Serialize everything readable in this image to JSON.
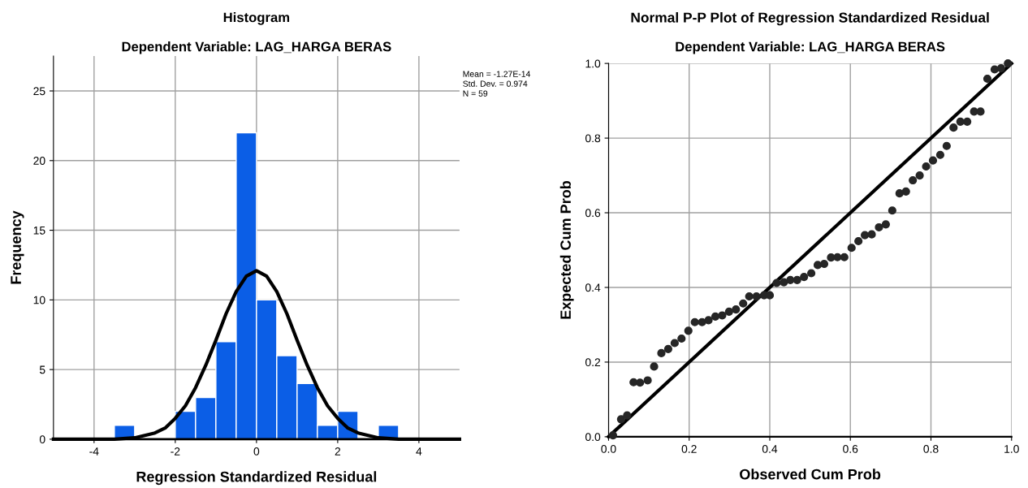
{
  "chart_data": [
    {
      "type": "histogram",
      "title": "Histogram",
      "subtitle": "Dependent Variable: LAG_HARGA BERAS",
      "xlabel": "Regression Standardized Residual",
      "ylabel": "Frequency",
      "series": [
        {
          "color": "#0b5ee6",
          "bins": [
            -3.5,
            -3.0,
            -2.5,
            -2.0,
            -1.5,
            -1.0,
            -0.5,
            0.0,
            0.5,
            1.0,
            1.5,
            2.0,
            2.5,
            3.0,
            3.5
          ],
          "values": [
            1,
            0,
            0,
            2,
            3,
            7,
            22,
            10,
            6,
            4,
            1,
            2,
            0,
            1
          ]
        },
        {
          "type": "line",
          "color": "#000000",
          "x": [
            -5,
            -4,
            -3.5,
            -3,
            -2.5,
            -2.25,
            -2,
            -1.75,
            -1.5,
            -1.25,
            -1,
            -0.75,
            -0.5,
            -0.25,
            0,
            0.25,
            0.5,
            0.75,
            1,
            1.25,
            1.5,
            1.75,
            2,
            2.25,
            2.5,
            3,
            3.5,
            4,
            5
          ],
          "values": [
            0,
            0,
            0,
            0.1,
            0.45,
            0.8,
            1.5,
            2.4,
            3.7,
            5.3,
            7.1,
            9.0,
            10.6,
            11.7,
            12.1,
            11.7,
            10.6,
            9.0,
            7.1,
            5.3,
            3.7,
            2.4,
            1.5,
            0.8,
            0.45,
            0.1,
            0,
            0,
            0
          ]
        }
      ],
      "xlim": [
        -5,
        5
      ],
      "ylim": [
        0,
        27.5
      ],
      "xticks": [
        -4,
        -2,
        0,
        2,
        4
      ],
      "yticks": [
        0,
        5,
        10,
        15,
        20,
        25
      ],
      "grid": true,
      "legend": false,
      "annotations": [
        "Mean = -1.27E-14",
        "Std. Dev. = 0.974",
        "N = 59"
      ]
    },
    {
      "type": "scatter",
      "title": "Normal P-P Plot of Regression Standardized Residual",
      "subtitle": "Dependent Variable: LAG_HARGA BERAS",
      "xlabel": "Observed Cum Prob",
      "ylabel": "Expected Cum Prob",
      "series": [
        {
          "color": "#262626",
          "marker": "circle",
          "x": [
            0.011,
            0.031,
            0.046,
            0.062,
            0.078,
            0.097,
            0.113,
            0.131,
            0.148,
            0.164,
            0.181,
            0.198,
            0.214,
            0.232,
            0.248,
            0.265,
            0.282,
            0.299,
            0.316,
            0.334,
            0.349,
            0.367,
            0.386,
            0.4,
            0.417,
            0.435,
            0.451,
            0.468,
            0.485,
            0.503,
            0.519,
            0.535,
            0.552,
            0.568,
            0.585,
            0.603,
            0.62,
            0.636,
            0.653,
            0.671,
            0.688,
            0.704,
            0.722,
            0.738,
            0.755,
            0.772,
            0.788,
            0.805,
            0.823,
            0.839,
            0.856,
            0.873,
            0.89,
            0.907,
            0.923,
            0.94,
            0.958,
            0.974,
            0.991
          ],
          "values": [
            0.004,
            0.047,
            0.057,
            0.146,
            0.145,
            0.151,
            0.188,
            0.224,
            0.235,
            0.251,
            0.263,
            0.284,
            0.307,
            0.307,
            0.312,
            0.322,
            0.325,
            0.335,
            0.341,
            0.357,
            0.376,
            0.376,
            0.379,
            0.379,
            0.412,
            0.414,
            0.42,
            0.42,
            0.428,
            0.438,
            0.46,
            0.463,
            0.48,
            0.481,
            0.481,
            0.506,
            0.524,
            0.54,
            0.542,
            0.561,
            0.569,
            0.606,
            0.652,
            0.657,
            0.687,
            0.7,
            0.724,
            0.74,
            0.755,
            0.779,
            0.828,
            0.844,
            0.844,
            0.871,
            0.871,
            0.959,
            0.984,
            0.987,
            1.0
          ]
        },
        {
          "type": "line",
          "color": "#000000",
          "x": [
            0,
            1
          ],
          "values": [
            0,
            1
          ]
        }
      ],
      "xlim": [
        0,
        1
      ],
      "ylim": [
        0,
        1
      ],
      "xticks": [
        {
          "value": 0,
          "label": "0.0"
        },
        {
          "value": 0.2,
          "label": "0.2"
        },
        {
          "value": 0.4,
          "label": "0.4"
        },
        {
          "value": 0.6,
          "label": "0.6"
        },
        {
          "value": 0.8,
          "label": "0.8"
        },
        {
          "value": 1,
          "label": "1.0"
        }
      ],
      "yticks": [
        {
          "value": 0,
          "label": "0.0"
        },
        {
          "value": 0.2,
          "label": "0.2"
        },
        {
          "value": 0.4,
          "label": "0.4"
        },
        {
          "value": 0.6,
          "label": "0.6"
        },
        {
          "value": 0.8,
          "label": "0.8"
        },
        {
          "value": 1,
          "label": "1.0"
        }
      ],
      "grid": true,
      "legend": false
    }
  ]
}
